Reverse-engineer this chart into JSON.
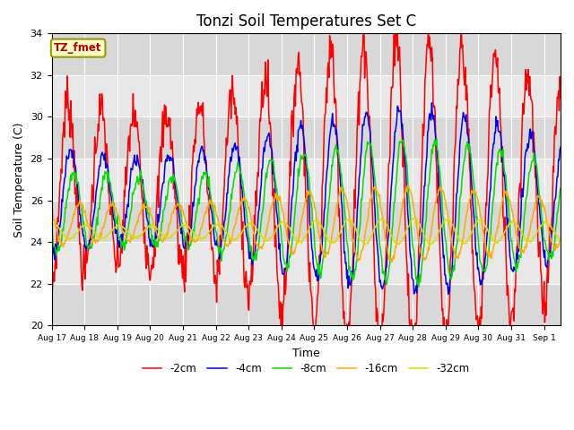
{
  "title": "Tonzi Soil Temperatures Set C",
  "xlabel": "Time",
  "ylabel": "Soil Temperature (C)",
  "ylim": [
    20,
    34
  ],
  "legend_label": "TZ_fmet",
  "series": [
    {
      "label": "-2cm",
      "color": "#ff0000",
      "amplitude": 5.5,
      "mean": 26.5,
      "phase": 0.25,
      "noise": 0.6
    },
    {
      "label": "-4cm",
      "color": "#0000ee",
      "amplitude": 3.2,
      "mean": 26.0,
      "phase": 0.33,
      "noise": 0.2
    },
    {
      "label": "-8cm",
      "color": "#00dd00",
      "amplitude": 2.5,
      "mean": 25.5,
      "phase": 0.42,
      "noise": 0.15
    },
    {
      "label": "-16cm",
      "color": "#ffaa00",
      "amplitude": 1.3,
      "mean": 24.9,
      "phase": 0.6,
      "noise": 0.08
    },
    {
      "label": "-32cm",
      "color": "#dddd00",
      "amplitude": 0.45,
      "mean": 24.5,
      "phase": 0.8,
      "noise": 0.03
    }
  ],
  "tick_labels": [
    "Aug 17",
    "Aug 18",
    "Aug 19",
    "Aug 20",
    "Aug 21",
    "Aug 22",
    "Aug 23",
    "Aug 24",
    "Aug 25",
    "Aug 26",
    "Aug 27",
    "Aug 28",
    "Aug 29",
    "Aug 30",
    "Aug 31",
    "Sep 1"
  ],
  "background_color": "#dcdcdc",
  "fig_background": "#ffffff",
  "linewidth": 1.1
}
